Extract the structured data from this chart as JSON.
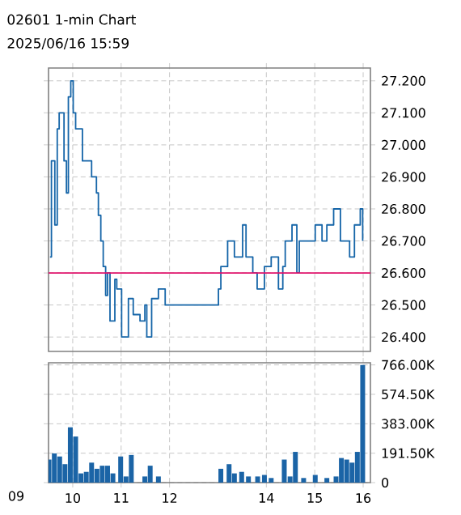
{
  "chart_data": [
    {
      "type": "step",
      "title": "02601  1-min Chart",
      "subtitle": "2025/06/16 15:59",
      "color": "#1565a8",
      "x": [
        9.53,
        9.56,
        9.63,
        9.68,
        9.72,
        9.82,
        9.87,
        9.91,
        9.96,
        10.01,
        10.06,
        10.15,
        10.2,
        10.3,
        10.39,
        10.49,
        10.53,
        10.58,
        10.63,
        10.68,
        10.72,
        10.77,
        10.87,
        10.91,
        11.01,
        11.1,
        11.15,
        11.25,
        11.39,
        11.49,
        11.53,
        11.63,
        11.77,
        11.91,
        13.01,
        13.06,
        13.2,
        13.34,
        13.51,
        13.58,
        13.72,
        13.81,
        13.96,
        14.1,
        14.25,
        14.34,
        14.39,
        14.53,
        14.63,
        14.68,
        14.87,
        15.01,
        15.15,
        15.25,
        15.39,
        15.44,
        15.53,
        15.68,
        15.72,
        15.82,
        15.94,
        15.99
      ],
      "values": [
        26.65,
        26.95,
        26.75,
        27.05,
        27.1,
        26.95,
        26.85,
        27.15,
        27.2,
        27.1,
        27.05,
        27.05,
        26.95,
        26.95,
        26.9,
        26.85,
        26.78,
        26.7,
        26.62,
        26.53,
        26.6,
        26.45,
        26.58,
        26.55,
        26.4,
        26.4,
        26.52,
        26.47,
        26.45,
        26.5,
        26.4,
        26.52,
        26.55,
        26.5,
        26.55,
        26.62,
        26.7,
        26.65,
        26.75,
        26.65,
        26.6,
        26.55,
        26.62,
        26.65,
        26.55,
        26.62,
        26.7,
        26.75,
        26.6,
        26.7,
        26.7,
        26.75,
        26.7,
        26.75,
        26.8,
        26.8,
        26.7,
        26.7,
        26.65,
        26.75,
        26.8,
        26.7
      ],
      "xlim": [
        9.5,
        16.15
      ],
      "ylim": [
        26.355,
        27.24
      ],
      "xticks": [
        10,
        11,
        12,
        14,
        15,
        16
      ],
      "yticks": [
        {
          "value": 26.4,
          "label": "26.400"
        },
        {
          "value": 26.5,
          "label": "26.500"
        },
        {
          "value": 26.6,
          "label": "26.600"
        },
        {
          "value": 26.7,
          "label": "26.700"
        },
        {
          "value": 26.8,
          "label": "26.800"
        },
        {
          "value": 26.9,
          "label": "26.900"
        },
        {
          "value": 27.0,
          "label": "27.000"
        },
        {
          "value": 27.1,
          "label": "27.100"
        },
        {
          "value": 27.2,
          "label": "27.200"
        }
      ],
      "ref_lines": [
        {
          "axis": "y",
          "value": 26.6,
          "color": "#e0106a"
        }
      ],
      "grid": true,
      "tick_labels": "y"
    },
    {
      "type": "bar",
      "color": "#1b64a6",
      "x": [
        9.51,
        9.62,
        9.73,
        9.84,
        9.95,
        10.06,
        10.17,
        10.28,
        10.39,
        10.5,
        10.61,
        10.72,
        10.83,
        10.99,
        11.1,
        11.21,
        11.49,
        11.6,
        11.77,
        13.06,
        13.23,
        13.34,
        13.49,
        13.63,
        13.82,
        13.96,
        14.1,
        14.37,
        14.49,
        14.6,
        14.77,
        15.01,
        15.25,
        15.44,
        15.55,
        15.66,
        15.77,
        15.88,
        15.99
      ],
      "values": [
        150000,
        190000,
        170000,
        120000,
        360000,
        300000,
        60000,
        70000,
        130000,
        90000,
        110000,
        110000,
        60000,
        170000,
        40000,
        180000,
        40000,
        110000,
        40000,
        90000,
        120000,
        60000,
        70000,
        40000,
        40000,
        50000,
        30000,
        150000,
        40000,
        200000,
        30000,
        50000,
        30000,
        40000,
        160000,
        150000,
        130000,
        200000,
        766000
      ],
      "xlim": [
        9.5,
        16.15
      ],
      "ylim": [
        0,
        780000
      ],
      "xticks": [
        10,
        11,
        12,
        14,
        15,
        16
      ],
      "yticks": [
        0,
        {
          "value": 191500,
          "label": "191.50K"
        },
        {
          "value": 383000,
          "label": "383.00K"
        },
        {
          "value": 574500,
          "label": "574.50K"
        },
        {
          "value": 766000,
          "label": "766.00K"
        }
      ],
      "annotations": [
        "09"
      ],
      "grid": true
    }
  ]
}
